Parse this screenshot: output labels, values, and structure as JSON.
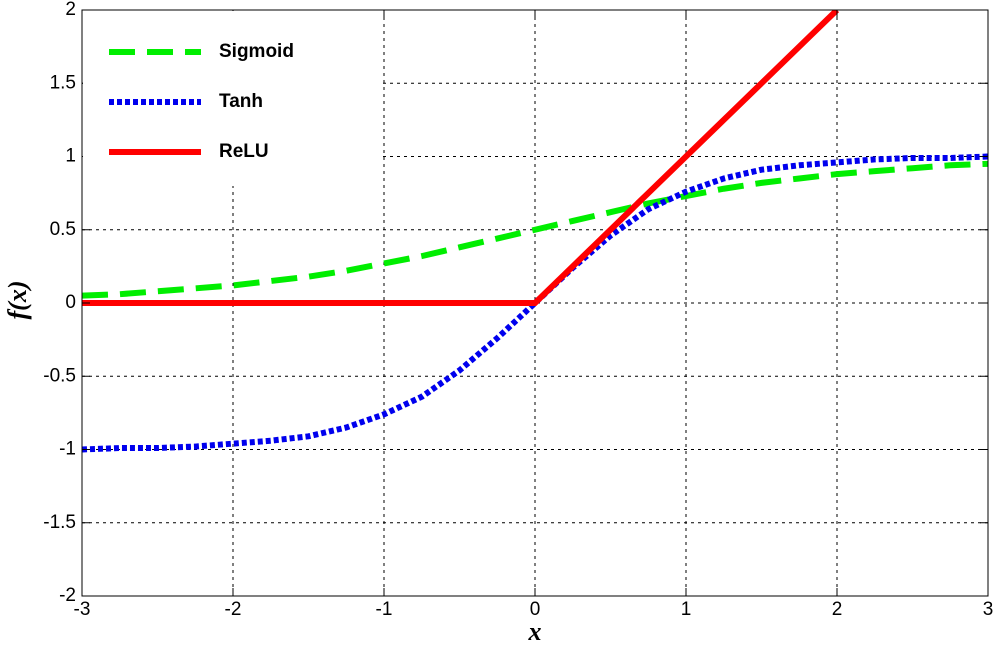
{
  "chart_data": {
    "type": "line",
    "xlabel": "x",
    "ylabel": "f(x)",
    "x": [
      -3,
      -2.75,
      -2.5,
      -2.25,
      -2,
      -1.75,
      -1.5,
      -1.25,
      -1,
      -0.75,
      -0.5,
      -0.25,
      0,
      0.25,
      0.5,
      0.75,
      1,
      1.25,
      1.5,
      1.75,
      2,
      2.25,
      2.5,
      2.75,
      3
    ],
    "series": [
      {
        "name": "Sigmoid",
        "color": "#00ee00",
        "style": "dashed",
        "values": [
          0.05,
          0.06,
          0.08,
          0.1,
          0.12,
          0.15,
          0.18,
          0.22,
          0.27,
          0.32,
          0.38,
          0.44,
          0.5,
          0.56,
          0.62,
          0.68,
          0.73,
          0.78,
          0.82,
          0.85,
          0.88,
          0.9,
          0.92,
          0.94,
          0.95
        ]
      },
      {
        "name": "Tanh",
        "color": "#0000ee",
        "style": "dotted",
        "values": [
          -1.0,
          -0.99,
          -0.99,
          -0.98,
          -0.96,
          -0.94,
          -0.91,
          -0.85,
          -0.76,
          -0.64,
          -0.46,
          -0.24,
          0,
          0.24,
          0.46,
          0.64,
          0.76,
          0.85,
          0.91,
          0.94,
          0.96,
          0.98,
          0.99,
          0.99,
          1.0
        ]
      },
      {
        "name": "ReLU",
        "color": "#ff0000",
        "style": "solid",
        "values": [
          0,
          0,
          0,
          0,
          0,
          0,
          0,
          0,
          0,
          0,
          0,
          0,
          0,
          0.25,
          0.5,
          0.75,
          1,
          1.25,
          1.5,
          1.75,
          2,
          null,
          null,
          null,
          null
        ]
      }
    ],
    "xlim": [
      -3,
      3
    ],
    "xticks": [
      -3,
      -2,
      -1,
      0,
      1,
      2,
      3
    ],
    "ylim": [
      -2,
      2
    ],
    "yticks": [
      -2,
      -1.5,
      -1,
      -0.5,
      0,
      0.5,
      1,
      1.5,
      2
    ],
    "grid": true,
    "legend": "upper left"
  }
}
